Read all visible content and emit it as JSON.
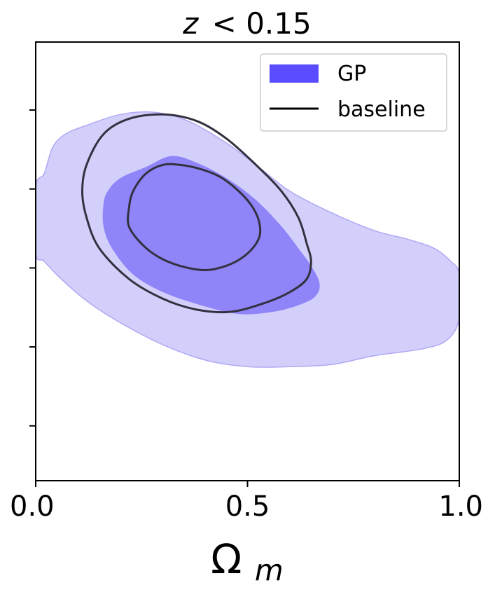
{
  "chart_data": {
    "type": "contour",
    "title_prefix": "z",
    "title_suffix": "< 0.15",
    "xlabel_symbol": "Ω",
    "xlabel_subscript": "m",
    "ylabel": "",
    "xlim": [
      0.0,
      1.0
    ],
    "ylim": [
      0.0,
      1.0
    ],
    "x_ticks": [
      {
        "value": 0.0,
        "label": "0.0"
      },
      {
        "value": 0.5,
        "label": "0.5"
      },
      {
        "value": 1.0,
        "label": "1.0"
      }
    ],
    "y_ticks": [
      0.125,
      0.305,
      0.485,
      0.665,
      0.845
    ],
    "grid": false,
    "legend_position": "top-right",
    "legend": [
      {
        "label": "GP",
        "kind": "patch",
        "color": "#5b4cff"
      },
      {
        "label": "baseline",
        "kind": "line",
        "color": "#000000"
      }
    ],
    "series": [
      {
        "name": "GP",
        "kind": "filled-contours",
        "color_outer": "#d3cffb",
        "color_outer_edge": "#b0a8f5",
        "color_inner": "#8f84f8",
        "levels": [
          {
            "level": "outer",
            "points": [
              [
                0.0,
                0.67
              ],
              [
                0.02,
                0.7
              ],
              [
                0.04,
                0.76
              ],
              [
                0.07,
                0.79
              ],
              [
                0.12,
                0.81
              ],
              [
                0.2,
                0.835
              ],
              [
                0.28,
                0.84
              ],
              [
                0.36,
                0.82
              ],
              [
                0.45,
                0.77
              ],
              [
                0.52,
                0.72
              ],
              [
                0.6,
                0.66
              ],
              [
                0.7,
                0.61
              ],
              [
                0.8,
                0.57
              ],
              [
                0.88,
                0.55
              ],
              [
                0.94,
                0.53
              ],
              [
                0.98,
                0.5
              ],
              [
                1.0,
                0.47
              ],
              [
                1.0,
                0.37
              ],
              [
                0.97,
                0.32
              ],
              [
                0.91,
                0.3
              ],
              [
                0.8,
                0.285
              ],
              [
                0.7,
                0.265
              ],
              [
                0.6,
                0.26
              ],
              [
                0.5,
                0.26
              ],
              [
                0.4,
                0.275
              ],
              [
                0.3,
                0.31
              ],
              [
                0.2,
                0.36
              ],
              [
                0.12,
                0.41
              ],
              [
                0.06,
                0.46
              ],
              [
                0.02,
                0.5
              ],
              [
                0.0,
                0.52
              ]
            ]
          },
          {
            "level": "inner",
            "points": [
              [
                0.16,
                0.63
              ],
              [
                0.17,
                0.66
              ],
              [
                0.2,
                0.69
              ],
              [
                0.26,
                0.715
              ],
              [
                0.32,
                0.74
              ],
              [
                0.38,
                0.725
              ],
              [
                0.45,
                0.69
              ],
              [
                0.52,
                0.64
              ],
              [
                0.58,
                0.58
              ],
              [
                0.62,
                0.53
              ],
              [
                0.65,
                0.49
              ],
              [
                0.67,
                0.45
              ],
              [
                0.66,
                0.42
              ],
              [
                0.62,
                0.4
              ],
              [
                0.56,
                0.385
              ],
              [
                0.48,
                0.38
              ],
              [
                0.39,
                0.4
              ],
              [
                0.3,
                0.43
              ],
              [
                0.23,
                0.47
              ],
              [
                0.18,
                0.53
              ],
              [
                0.16,
                0.58
              ]
            ]
          }
        ]
      },
      {
        "name": "baseline",
        "kind": "line-contours",
        "color": "#33313f",
        "levels": [
          {
            "level": "outer",
            "points": [
              [
                0.11,
                0.66
              ],
              [
                0.12,
                0.72
              ],
              [
                0.16,
                0.79
              ],
              [
                0.22,
                0.825
              ],
              [
                0.3,
                0.835
              ],
              [
                0.38,
                0.82
              ],
              [
                0.45,
                0.78
              ],
              [
                0.52,
                0.72
              ],
              [
                0.58,
                0.66
              ],
              [
                0.62,
                0.6
              ],
              [
                0.64,
                0.54
              ],
              [
                0.65,
                0.5
              ],
              [
                0.64,
                0.46
              ],
              [
                0.6,
                0.43
              ],
              [
                0.54,
                0.405
              ],
              [
                0.46,
                0.385
              ],
              [
                0.38,
                0.39
              ],
              [
                0.3,
                0.415
              ],
              [
                0.22,
                0.46
              ],
              [
                0.15,
                0.53
              ],
              [
                0.12,
                0.6
              ]
            ]
          },
          {
            "level": "inner",
            "points": [
              [
                0.22,
                0.62
              ],
              [
                0.23,
                0.66
              ],
              [
                0.26,
                0.7
              ],
              [
                0.3,
                0.72
              ],
              [
                0.34,
                0.72
              ],
              [
                0.39,
                0.71
              ],
              [
                0.44,
                0.69
              ],
              [
                0.49,
                0.65
              ],
              [
                0.52,
                0.61
              ],
              [
                0.53,
                0.57
              ],
              [
                0.52,
                0.54
              ],
              [
                0.49,
                0.51
              ],
              [
                0.45,
                0.49
              ],
              [
                0.4,
                0.48
              ],
              [
                0.34,
                0.49
              ],
              [
                0.29,
                0.51
              ],
              [
                0.25,
                0.54
              ],
              [
                0.22,
                0.58
              ]
            ]
          }
        ]
      }
    ]
  }
}
